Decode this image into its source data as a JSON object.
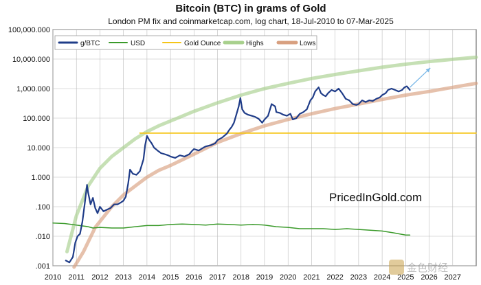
{
  "chart_data": {
    "type": "line",
    "title": "Bitcoin (BTC) in grams of Gold",
    "subtitle": "London PM fix and coinmarketcap.com, log chart, 18-Jul-2010 to 07-Mar-2025",
    "y_scale": "log",
    "ylim": [
      0.001,
      100000
    ],
    "xlim": [
      2010,
      2028
    ],
    "y_ticks": [
      {
        "value": 100000,
        "label": "100,000.000"
      },
      {
        "value": 10000,
        "label": "10,000.000"
      },
      {
        "value": 1000,
        "label": "1,000.000"
      },
      {
        "value": 100,
        "label": "100.000"
      },
      {
        "value": 10,
        "label": "10.000"
      },
      {
        "value": 1,
        "label": "1.000"
      },
      {
        "value": 0.1,
        "label": ".100"
      },
      {
        "value": 0.01,
        "label": ".010"
      },
      {
        "value": 0.001,
        "label": ".001"
      }
    ],
    "x_ticks": [
      "2010",
      "2011",
      "2012",
      "2013",
      "2014",
      "2015",
      "2016",
      "2017",
      "2018",
      "2019",
      "2020",
      "2021",
      "2022",
      "2023",
      "2024",
      "2025",
      "2026",
      "2027"
    ],
    "grid": true,
    "legend_position": "top-left",
    "series": [
      {
        "name": "g/BTC",
        "color": "#1f3c88",
        "width": 2.2,
        "x": [
          2010.55,
          2010.7,
          2010.85,
          2010.95,
          2011.05,
          2011.15,
          2011.25,
          2011.35,
          2011.45,
          2011.5,
          2011.6,
          2011.7,
          2011.8,
          2011.9,
          2012.0,
          2012.15,
          2012.3,
          2012.45,
          2012.6,
          2012.75,
          2012.9,
          2013.0,
          2013.1,
          2013.2,
          2013.28,
          2013.4,
          2013.55,
          2013.7,
          2013.85,
          2013.92,
          2014.0,
          2014.1,
          2014.2,
          2014.3,
          2014.45,
          2014.6,
          2014.75,
          2014.9,
          2015.0,
          2015.2,
          2015.4,
          2015.6,
          2015.8,
          2015.9,
          2016.0,
          2016.2,
          2016.4,
          2016.5,
          2016.7,
          2016.9,
          2017.0,
          2017.2,
          2017.4,
          2017.5,
          2017.6,
          2017.7,
          2017.8,
          2017.9,
          2017.97,
          2018.05,
          2018.15,
          2018.3,
          2018.45,
          2018.6,
          2018.75,
          2018.9,
          2019.0,
          2019.15,
          2019.3,
          2019.45,
          2019.5,
          2019.65,
          2019.8,
          2019.95,
          2020.1,
          2020.2,
          2020.35,
          2020.5,
          2020.65,
          2020.8,
          2020.95,
          2021.05,
          2021.15,
          2021.3,
          2021.4,
          2021.5,
          2021.6,
          2021.7,
          2021.85,
          2022.0,
          2022.15,
          2022.3,
          2022.45,
          2022.6,
          2022.75,
          2022.9,
          2023.0,
          2023.15,
          2023.3,
          2023.45,
          2023.6,
          2023.75,
          2023.9,
          2024.0,
          2024.15,
          2024.25,
          2024.4,
          2024.55,
          2024.7,
          2024.85,
          2024.95,
          2025.05,
          2025.18
        ],
        "values": [
          0.0015,
          0.0013,
          0.002,
          0.006,
          0.01,
          0.012,
          0.03,
          0.12,
          0.55,
          0.3,
          0.12,
          0.2,
          0.09,
          0.06,
          0.1,
          0.07,
          0.08,
          0.09,
          0.12,
          0.12,
          0.14,
          0.16,
          0.22,
          0.6,
          1.8,
          1.3,
          1.2,
          1.6,
          4,
          12,
          25,
          18,
          14,
          10,
          8,
          6.5,
          6,
          5.5,
          5,
          4.5,
          5.5,
          5,
          6,
          7.5,
          9,
          8,
          10,
          11,
          12,
          14,
          18,
          22,
          30,
          40,
          50,
          70,
          130,
          250,
          480,
          200,
          150,
          130,
          120,
          110,
          95,
          70,
          90,
          120,
          300,
          250,
          160,
          150,
          130,
          120,
          140,
          90,
          100,
          140,
          160,
          200,
          400,
          500,
          800,
          1100,
          700,
          600,
          550,
          700,
          900,
          800,
          1000,
          700,
          450,
          400,
          300,
          280,
          300,
          400,
          350,
          400,
          380,
          450,
          500,
          600,
          700,
          900,
          1000,
          900,
          800,
          900,
          1100,
          1200,
          900
        ]
      },
      {
        "name": "USD",
        "color": "#3a9a2a",
        "width": 1.5,
        "x": [
          2010.0,
          2010.5,
          2011.0,
          2011.5,
          2011.7,
          2012.0,
          2012.5,
          2013.0,
          2013.5,
          2014.0,
          2014.5,
          2015.0,
          2015.5,
          2016.0,
          2016.5,
          2017.0,
          2017.5,
          2018.0,
          2018.5,
          2019.0,
          2019.5,
          2020.0,
          2020.5,
          2021.0,
          2021.5,
          2022.0,
          2022.5,
          2023.0,
          2023.5,
          2024.0,
          2024.5,
          2025.0,
          2025.18
        ],
        "values": [
          0.028,
          0.027,
          0.024,
          0.021,
          0.019,
          0.02,
          0.019,
          0.019,
          0.021,
          0.023,
          0.023,
          0.025,
          0.026,
          0.025,
          0.024,
          0.026,
          0.025,
          0.024,
          0.025,
          0.024,
          0.021,
          0.02,
          0.018,
          0.018,
          0.018,
          0.017,
          0.018,
          0.017,
          0.016,
          0.015,
          0.013,
          0.011,
          0.011
        ]
      },
      {
        "name": "Gold Ounce",
        "color": "#f5c518",
        "width": 1.8,
        "x": [
          2013.7,
          2028.0
        ],
        "values": [
          31.1,
          31.1
        ]
      },
      {
        "name": "Highs",
        "color": "#a8d08d",
        "width": 5,
        "opacity": 0.65,
        "x": [
          2010.6,
          2011.0,
          2011.5,
          2012.0,
          2012.5,
          2013.0,
          2013.5,
          2014.0,
          2014.5,
          2015.0,
          2016.0,
          2017.0,
          2018.0,
          2019.0,
          2020.0,
          2021.0,
          2022.0,
          2023.0,
          2024.0,
          2025.0,
          2026.0,
          2027.0,
          2028.0
        ],
        "values": [
          0.003,
          0.05,
          0.5,
          2,
          5,
          10,
          20,
          35,
          55,
          80,
          170,
          330,
          600,
          1000,
          1500,
          2200,
          3000,
          4000,
          5300,
          6700,
          8200,
          9800,
          11500
        ]
      },
      {
        "name": "Lows",
        "color": "#d8a080",
        "width": 5,
        "opacity": 0.65,
        "x": [
          2010.9,
          2011.3,
          2011.8,
          2012.5,
          2013.0,
          2013.5,
          2014.0,
          2014.5,
          2015.0,
          2016.0,
          2017.0,
          2018.0,
          2019.0,
          2020.0,
          2021.0,
          2022.0,
          2023.0,
          2024.0,
          2025.0,
          2026.0,
          2027.0,
          2028.0
        ],
        "values": [
          0.0009,
          0.003,
          0.02,
          0.1,
          0.25,
          0.5,
          1,
          1.7,
          2.5,
          6,
          15,
          30,
          55,
          90,
          140,
          210,
          300,
          430,
          600,
          800,
          1100,
          1500
        ]
      }
    ],
    "projection": {
      "x": [
        2025.18,
        2026.05
      ],
      "values": [
        1100,
        5000
      ],
      "color": "#7ab8e8"
    }
  },
  "legend": [
    {
      "label": "g/BTC",
      "color": "#1f3c88",
      "width": 3
    },
    {
      "label": "USD",
      "color": "#3a9a2a",
      "width": 2
    },
    {
      "label": "Gold Ounce",
      "color": "#f5c518",
      "width": 2
    },
    {
      "label": "Highs",
      "color": "#a8d08d",
      "width": 5
    },
    {
      "label": "Lows",
      "color": "#d8a080",
      "width": 5
    }
  ],
  "brand_text": "PricedInGold.com",
  "watermark_text": "金色财经"
}
